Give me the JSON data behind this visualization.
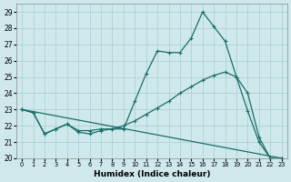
{
  "xlabel": "Humidex (Indice chaleur)",
  "bg_color": "#cfe8eb",
  "grid_color": "#a8cdd1",
  "line_color": "#1a6e6a",
  "xlim": [
    0,
    23
  ],
  "ylim": [
    20,
    29.5
  ],
  "xticks": [
    0,
    1,
    2,
    3,
    4,
    5,
    6,
    7,
    8,
    9,
    10,
    11,
    12,
    13,
    14,
    15,
    16,
    17,
    18,
    19,
    20,
    21,
    22,
    23
  ],
  "yticks": [
    20,
    21,
    22,
    23,
    24,
    25,
    26,
    27,
    28,
    29
  ],
  "series": [
    {
      "x": [
        0,
        1,
        2,
        3,
        4,
        5,
        6,
        7,
        8,
        9,
        10,
        11,
        12,
        13,
        14,
        15,
        16,
        17,
        18,
        19,
        20,
        21,
        22,
        23
      ],
      "y": [
        23,
        22.8,
        21.5,
        21.8,
        22.1,
        21.6,
        21.5,
        21.7,
        21.8,
        21.8,
        23.5,
        25.2,
        26.6,
        26.5,
        26.5,
        27.4,
        29.0,
        28.1,
        27.2,
        25.0,
        22.9,
        21.0,
        20.0,
        null
      ]
    },
    {
      "x": [
        0,
        23
      ],
      "y": [
        23.0,
        20.0
      ]
    },
    {
      "x": [
        0,
        1,
        2,
        3,
        4,
        5,
        6,
        7,
        8,
        9,
        10,
        11,
        12,
        13,
        14,
        15,
        16,
        17,
        18,
        19,
        20,
        21,
        22,
        23
      ],
      "y": [
        23,
        22.8,
        21.5,
        21.8,
        22.1,
        21.7,
        21.7,
        21.8,
        21.8,
        22.0,
        22.3,
        22.7,
        23.1,
        23.5,
        24.0,
        24.4,
        24.8,
        25.1,
        25.3,
        25.0,
        24.0,
        21.3,
        20.0,
        20.0
      ]
    }
  ]
}
